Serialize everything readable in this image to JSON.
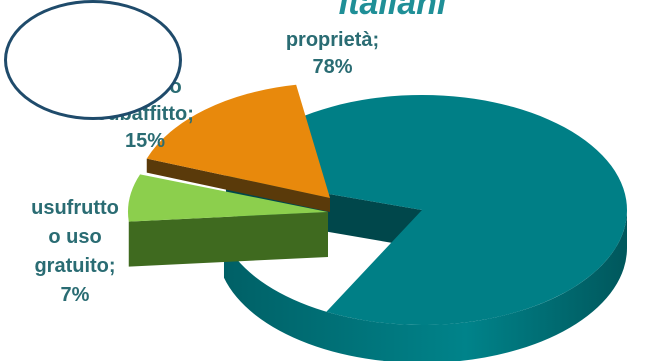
{
  "chart_data": {
    "type": "pie",
    "title": "Italiani",
    "style": "3d-exploded",
    "slices": [
      {
        "label": "proprietà",
        "value": 78,
        "display": "78%",
        "color": "#007f86"
      },
      {
        "label": "affitto o subaffitto",
        "value": 15,
        "display": "15%",
        "color": "#e8890c"
      },
      {
        "label": "usufrutto o uso gratuito",
        "value": 7,
        "display": "7%",
        "color": "#8ccf4d"
      }
    ],
    "labels": {
      "proprieta": {
        "line1": "proprietà;",
        "line2": "78%"
      },
      "affitto": {
        "line1": "affitto o",
        "line2": "subaffitto;",
        "line3": "15%"
      },
      "usufrutto": {
        "line1": "usufrutto",
        "line2": "o uso",
        "line3": "gratuito;",
        "line4": "7%"
      }
    },
    "label_color": "#2a6c73",
    "callout_border_color": "#1f4b6b"
  }
}
